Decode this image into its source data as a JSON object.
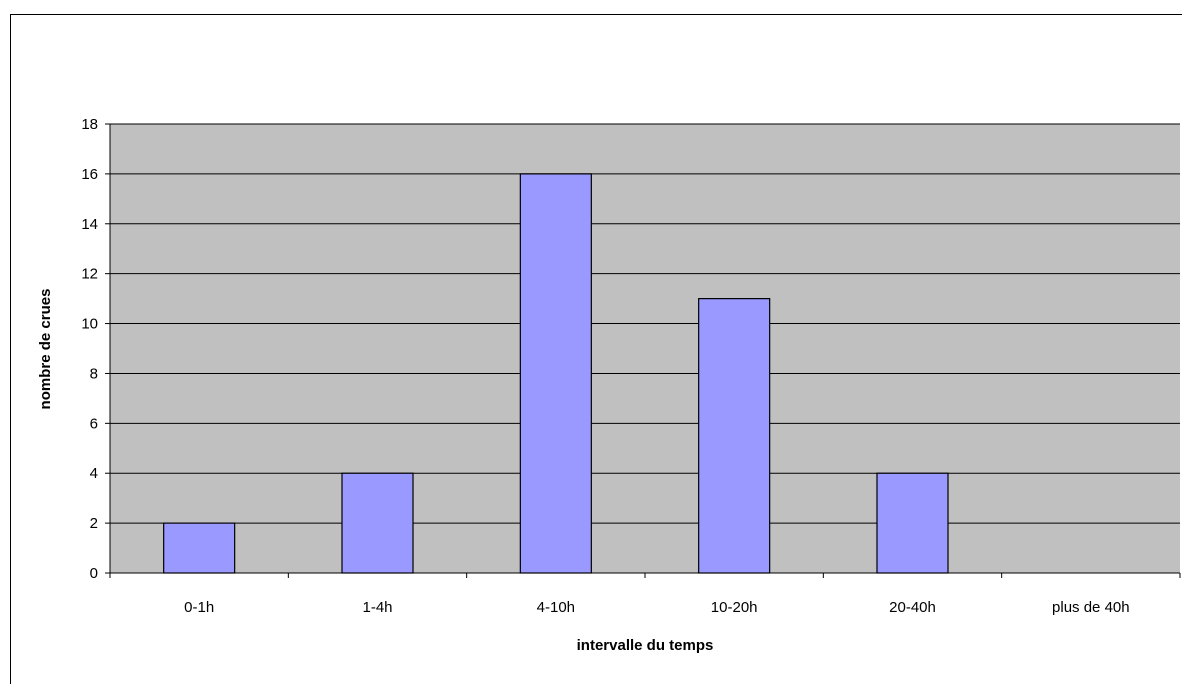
{
  "chart_data": {
    "type": "bar",
    "categories": [
      "0-1h",
      "1-4h",
      "4-10h",
      "10-20h",
      "20-40h",
      "plus de 40h"
    ],
    "values": [
      2,
      4,
      16,
      11,
      4,
      0
    ],
    "title": "",
    "xlabel": "intervalle du temps",
    "ylabel": "nombre de crues",
    "ylim": [
      0,
      18
    ],
    "yticks": [
      0,
      2,
      4,
      6,
      8,
      10,
      12,
      14,
      16,
      18
    ],
    "grid": true,
    "colors": {
      "bar_fill": "#9999ff",
      "bar_stroke": "#000000",
      "plot_bg": "#c0c0c0",
      "gridline": "#000000"
    }
  }
}
